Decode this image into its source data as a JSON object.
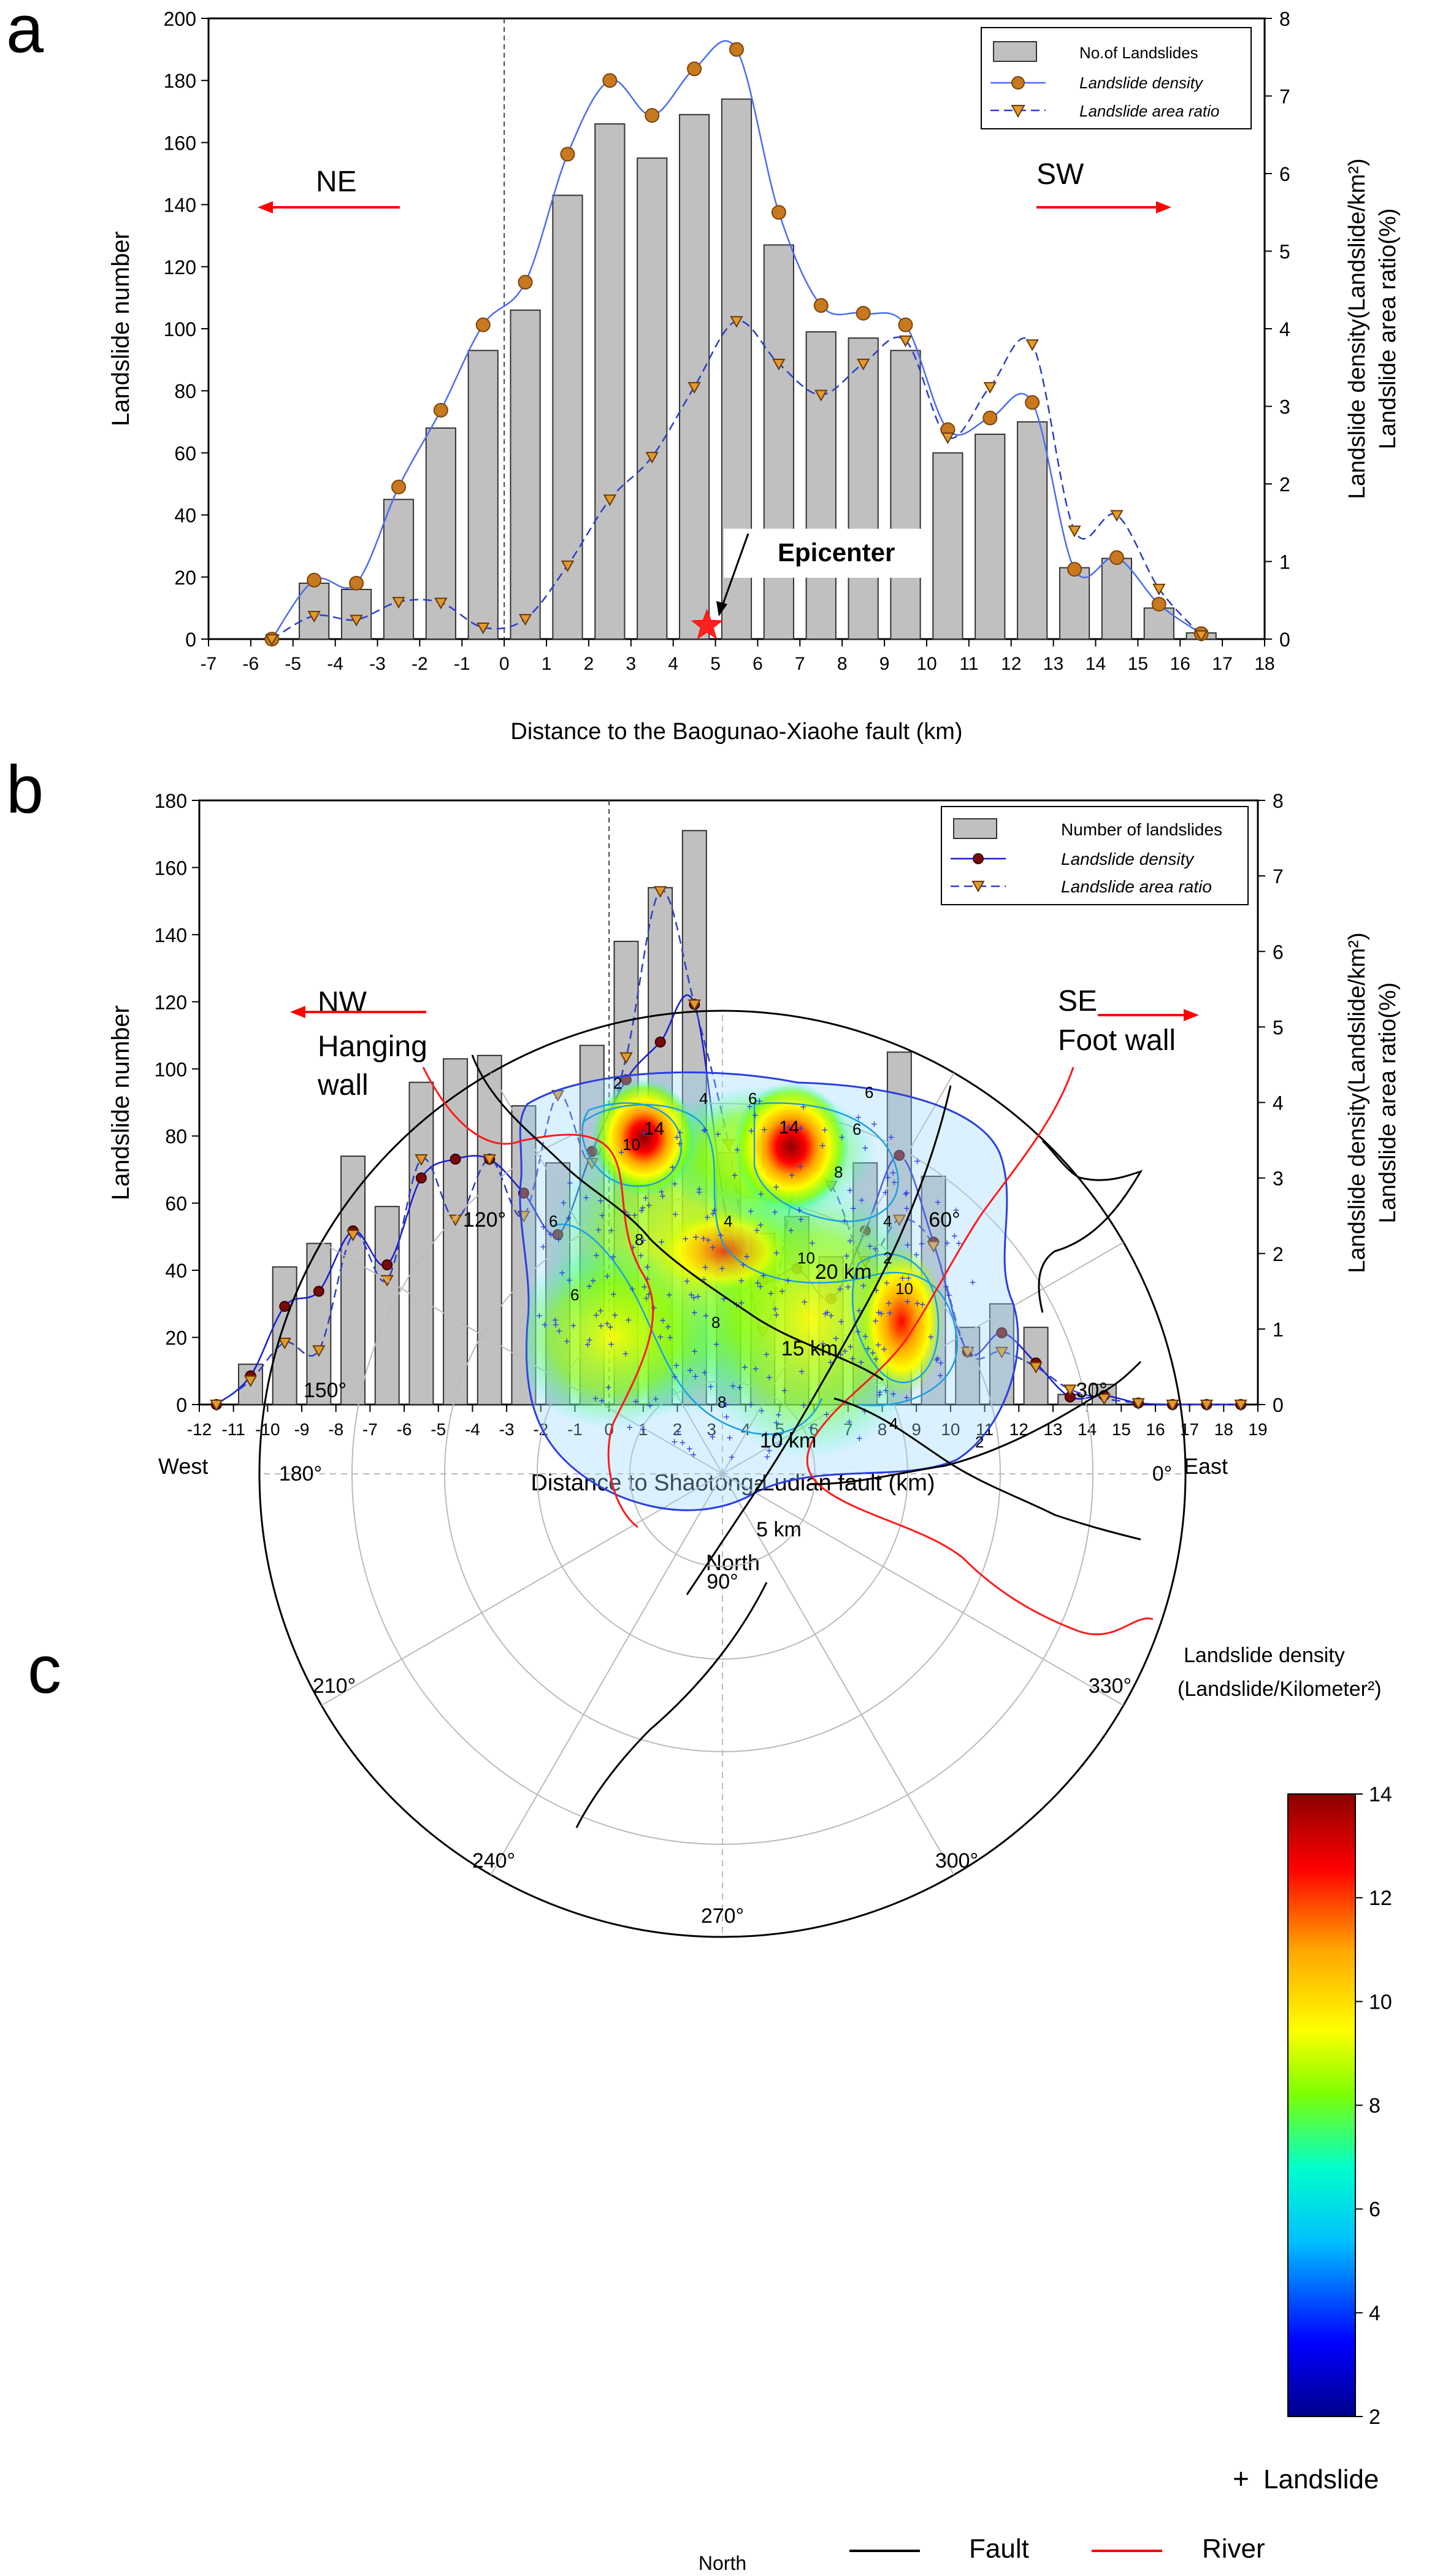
{
  "chart_data": [
    {
      "panel": "a",
      "type": "bar",
      "ylabel": "Landslide number",
      "y2label": "Landslide density(Landslide/km²)",
      "y2label_line2": "Landslide area ratio(%)",
      "xlabel": "Distance to the Baogunao-Xiaohe fault (km)",
      "xlim": [
        -7,
        18
      ],
      "ylim": [
        0,
        200
      ],
      "y2lim": [
        0,
        8
      ],
      "xticks": [
        -7,
        -6,
        -5,
        -4,
        -3,
        -2,
        -1,
        0,
        1,
        2,
        3,
        4,
        5,
        6,
        7,
        8,
        9,
        10,
        11,
        12,
        13,
        14,
        15,
        16,
        17,
        18
      ],
      "yticks": [
        0,
        20,
        40,
        60,
        80,
        100,
        120,
        140,
        160,
        180,
        200
      ],
      "y2ticks": [
        0,
        1,
        2,
        3,
        4,
        5,
        6,
        7,
        8
      ],
      "legend": [
        "No.of Landslides",
        "Landslide density",
        "Landslide area ratio"
      ],
      "annotations": {
        "left_dir": "NE",
        "right_dir": "SW",
        "epicenter": "Epicenter"
      },
      "epicenter_x": 4.8,
      "fault_x": 0,
      "bars": {
        "x": [
          -4.5,
          -3.5,
          -2.5,
          -1.5,
          -0.5,
          0.5,
          1.5,
          2.5,
          3.5,
          4.5,
          5.5,
          6.5,
          7.5,
          8.5,
          9.5,
          10.5,
          11.5,
          12.5,
          13.5,
          14.5,
          15.5,
          16.5
        ],
        "values": [
          18,
          16,
          45,
          68,
          93,
          106,
          143,
          166,
          155,
          169,
          174,
          127,
          99,
          97,
          93,
          60,
          66,
          70,
          23,
          26,
          10,
          2
        ]
      },
      "density": {
        "x": [
          -5.5,
          -4.5,
          -3.5,
          -2.5,
          -1.5,
          -0.5,
          0.5,
          1.5,
          2.5,
          3.5,
          4.5,
          5.5,
          6.5,
          7.5,
          8.5,
          9.5,
          10.5,
          11.5,
          12.5,
          13.5,
          14.5,
          15.5,
          16.5
        ],
        "values": [
          0.0,
          0.76,
          0.72,
          1.96,
          2.95,
          4.05,
          4.6,
          6.25,
          7.2,
          6.75,
          7.35,
          7.6,
          5.5,
          4.3,
          4.2,
          4.05,
          2.7,
          2.85,
          3.05,
          0.9,
          1.05,
          0.45,
          0.07
        ]
      },
      "area_ratio": {
        "x": [
          -5.5,
          -4.5,
          -3.5,
          -2.5,
          -1.5,
          -0.5,
          0.5,
          1.5,
          2.5,
          3.5,
          4.5,
          5.5,
          6.5,
          7.5,
          8.5,
          9.5,
          10.5,
          11.5,
          12.5,
          13.5,
          14.5,
          15.5,
          16.5
        ],
        "values": [
          0.0,
          0.3,
          0.25,
          0.48,
          0.47,
          0.15,
          0.26,
          0.95,
          1.8,
          2.35,
          3.25,
          4.1,
          3.55,
          3.15,
          3.55,
          3.85,
          2.6,
          3.25,
          3.8,
          1.4,
          1.6,
          0.65,
          0.05
        ]
      }
    },
    {
      "panel": "b",
      "type": "bar",
      "ylabel": "Landslide number",
      "y2label": "Landslide density(Landslide/km²)",
      "y2label_line2": "Landslide area ratio(%)",
      "xlabel": "Distance to Shaotong-Ludian fault (km)",
      "xlim": [
        -12,
        19
      ],
      "ylim": [
        0,
        180
      ],
      "y2lim": [
        0,
        8
      ],
      "xticks": [
        -12,
        -11,
        -10,
        -9,
        -8,
        -7,
        -6,
        -5,
        -4,
        -3,
        -2,
        -1,
        0,
        1,
        2,
        3,
        4,
        5,
        6,
        7,
        8,
        9,
        10,
        11,
        12,
        13,
        14,
        15,
        16,
        17,
        18,
        19
      ],
      "yticks": [
        0,
        20,
        40,
        60,
        80,
        100,
        120,
        140,
        160,
        180
      ],
      "y2ticks": [
        0,
        1,
        2,
        3,
        4,
        5,
        6,
        7,
        8
      ],
      "legend": [
        "Number of landslides",
        "Landslide density",
        "Landslide area ratio"
      ],
      "annotations": {
        "left_dir": "NW",
        "left_sub1": "Hanging",
        "left_sub2": "wall",
        "right_dir": "SE",
        "right_sub": "Foot wall"
      },
      "fault_x": 0,
      "bars": {
        "x": [
          -10.5,
          -9.5,
          -8.5,
          -7.5,
          -6.5,
          -5.5,
          -4.5,
          -3.5,
          -2.5,
          -1.5,
          -0.5,
          0.5,
          1.5,
          2.5,
          3.5,
          4.5,
          5.5,
          6.5,
          7.5,
          8.5,
          9.5,
          10.5,
          11.5,
          12.5,
          13.5,
          14.5
        ],
        "values": [
          12,
          41,
          48,
          74,
          59,
          96,
          103,
          104,
          89,
          72,
          107,
          138,
          154,
          171,
          75,
          51,
          56,
          44,
          72,
          105,
          68,
          23,
          30,
          23,
          3,
          6
        ]
      },
      "density": {
        "x": [
          -11.5,
          -10.5,
          -9.5,
          -8.5,
          -7.5,
          -6.5,
          -5.5,
          -4.5,
          -3.5,
          -2.5,
          -1.5,
          -0.5,
          0.5,
          1.5,
          2.5,
          3.5,
          4.5,
          5.5,
          6.5,
          7.5,
          8.5,
          9.5,
          10.5,
          11.5,
          12.5,
          13.5,
          14.5,
          15.5,
          16.5,
          17.5,
          18.5
        ],
        "values": [
          0.0,
          0.38,
          1.3,
          1.5,
          2.3,
          1.85,
          3.0,
          3.25,
          3.25,
          2.8,
          2.25,
          3.35,
          4.3,
          4.8,
          5.3,
          2.35,
          1.65,
          1.8,
          1.4,
          2.3,
          3.3,
          2.15,
          0.7,
          0.95,
          0.55,
          0.1,
          0.12,
          0.02,
          0.0,
          0.0,
          0.0
        ]
      },
      "area_ratio": {
        "x": [
          -11.5,
          -10.5,
          -9.5,
          -8.5,
          -7.5,
          -6.5,
          -5.5,
          -4.5,
          -3.5,
          -2.5,
          -1.5,
          -0.5,
          0.5,
          1.5,
          2.5,
          3.5,
          4.5,
          5.5,
          6.5,
          7.5,
          8.5,
          9.5,
          10.5,
          11.5,
          12.5,
          13.5,
          14.5,
          15.5,
          16.5,
          17.5,
          18.5
        ],
        "values": [
          0.0,
          0.32,
          0.82,
          0.72,
          2.25,
          1.65,
          3.25,
          2.45,
          3.25,
          2.5,
          4.1,
          3.2,
          4.6,
          6.8,
          5.3,
          3.45,
          0.97,
          2.95,
          2.9,
          1.9,
          2.45,
          2.1,
          0.7,
          0.7,
          0.5,
          0.2,
          0.08,
          0.02,
          0.0,
          0.0,
          0.0
        ]
      }
    },
    {
      "panel": "c",
      "type": "heatmap",
      "title_north_top": "North",
      "title_north_bottom": "North",
      "west_label": "West",
      "east_label": "East",
      "angle_labels": [
        "0°",
        "30°",
        "60°",
        "90°",
        "120°",
        "150°",
        "180°",
        "210°",
        "240°",
        "270°",
        "300°",
        "330°"
      ],
      "ring_labels": [
        "5 km",
        "10 km",
        "15 km",
        "20 km"
      ],
      "colorbar": {
        "title": "Landslide density",
        "title_line2": "(Landslide/Kilometer²)",
        "min": 2,
        "max": 14,
        "ticks": [
          2,
          4,
          6,
          8,
          10,
          12,
          14
        ],
        "colors": [
          "#00008b",
          "#0000ff",
          "#00bfff",
          "#00ffcc",
          "#7fff00",
          "#ffff00",
          "#ffa500",
          "#ff0000",
          "#8b0000"
        ]
      },
      "hotspots": [
        {
          "dir": "northwest",
          "level": 14
        },
        {
          "dir": "north",
          "level": 14
        },
        {
          "dir": "southeast",
          "level": 12
        }
      ],
      "contour_labels": [
        "2",
        "4",
        "6",
        "8",
        "10",
        "14"
      ],
      "legend": {
        "landslide_symbol": "+",
        "landslide": "Landslide",
        "fault": "Fault",
        "river": "River"
      }
    }
  ],
  "panels": {
    "a": "a",
    "b": "b",
    "c": "c"
  }
}
